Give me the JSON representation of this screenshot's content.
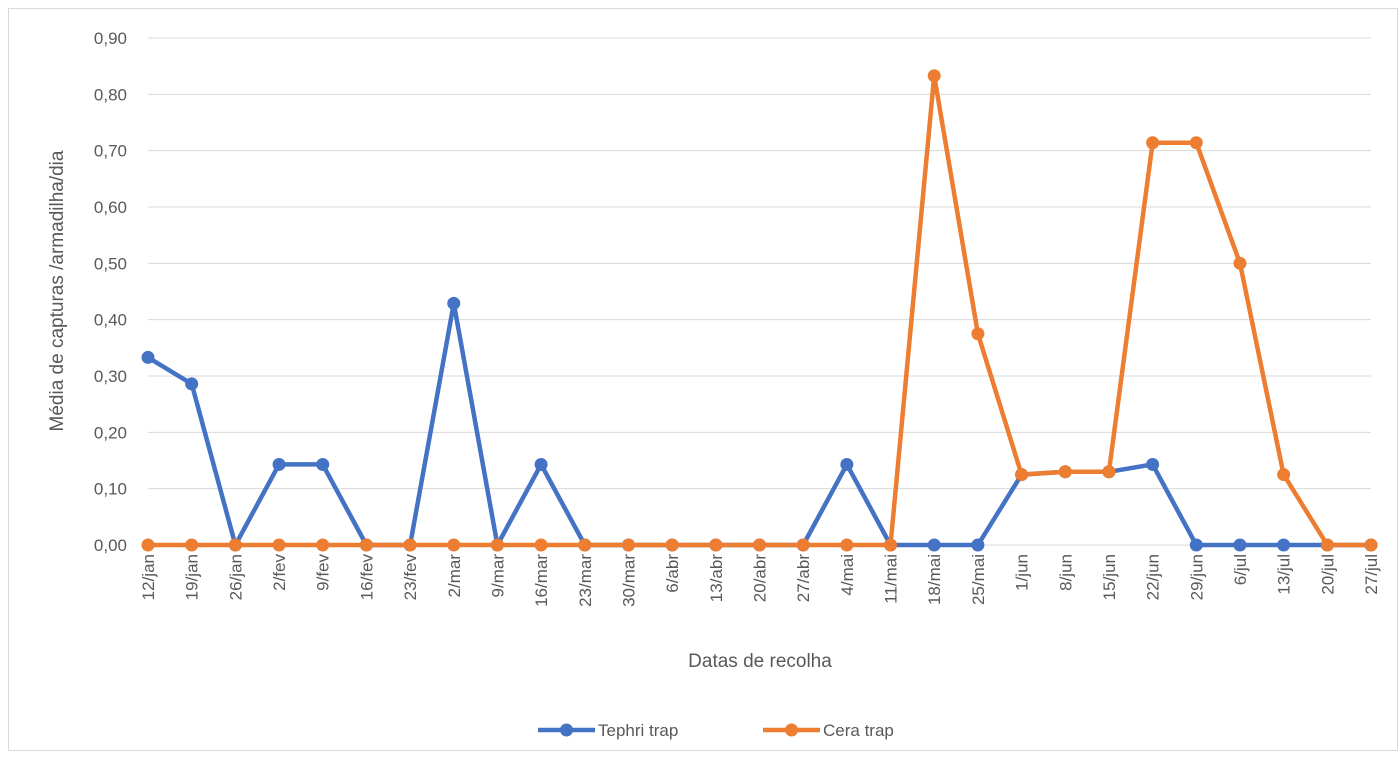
{
  "chart_data": {
    "type": "line",
    "title": "",
    "xlabel": "Datas de recolha",
    "ylabel": "Média de capturas /armadilha/dia",
    "ylim": [
      0,
      0.9
    ],
    "yticks": [
      "0,00",
      "0,10",
      "0,20",
      "0,30",
      "0,40",
      "0,50",
      "0,60",
      "0,70",
      "0,80",
      "0,90"
    ],
    "grid": true,
    "legend_position": "bottom",
    "categories": [
      "12/jan",
      "19/jan",
      "26/jan",
      "2/fev",
      "9/fev",
      "16/fev",
      "23/fev",
      "2/mar",
      "9/mar",
      "16/mar",
      "23/mar",
      "30/mar",
      "6/abr",
      "13/abr",
      "20/abr",
      "27/abr",
      "4/mai",
      "11/mai",
      "18/mai",
      "25/mai",
      "1/jun",
      "8/jun",
      "15/jun",
      "22/jun",
      "29/jun",
      "6/jul",
      "13/jul",
      "20/jul",
      "27/jul"
    ],
    "series": [
      {
        "name": "Tephri trap",
        "color": "#4472C4",
        "values": [
          0.333,
          0.286,
          0,
          0.143,
          0.143,
          0,
          0,
          0.429,
          0,
          0.143,
          0,
          0,
          0,
          0,
          0,
          0,
          0.143,
          0,
          0,
          0,
          0.125,
          0.13,
          0.13,
          0.143,
          0,
          0,
          0,
          0,
          0
        ]
      },
      {
        "name": "Cera trap",
        "color": "#ED7D31",
        "values": [
          0,
          0,
          0,
          0,
          0,
          0,
          0,
          0,
          0,
          0,
          0,
          0,
          0,
          0,
          0,
          0,
          0,
          0,
          0.833,
          0.375,
          0.125,
          0.13,
          0.13,
          0.714,
          0.714,
          0.5,
          0.125,
          0,
          0
        ]
      }
    ]
  }
}
